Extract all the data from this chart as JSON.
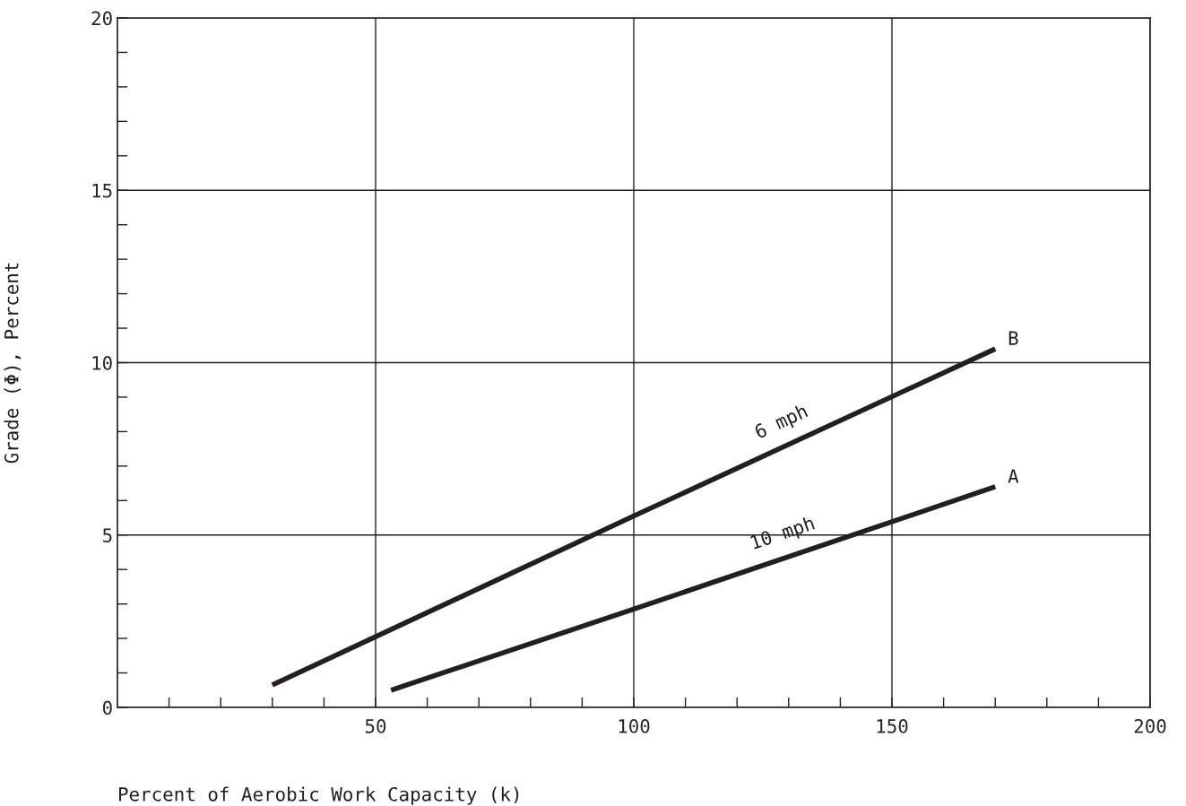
{
  "chart_data": {
    "type": "line",
    "xlabel": "Percent of Aerobic Work Capacity (k)",
    "ylabel": "Grade (Φ), Percent",
    "xlim": [
      0,
      200
    ],
    "ylim": [
      0,
      20
    ],
    "xticks": [
      {
        "value": 10,
        "label": null
      },
      {
        "value": 20,
        "label": null
      },
      {
        "value": 30,
        "label": null
      },
      {
        "value": 40,
        "label": null
      },
      50,
      {
        "value": 60,
        "label": null
      },
      {
        "value": 70,
        "label": null
      },
      {
        "value": 80,
        "label": null
      },
      {
        "value": 90,
        "label": null
      },
      100,
      {
        "value": 110,
        "label": null
      },
      {
        "value": 120,
        "label": null
      },
      {
        "value": 130,
        "label": null
      },
      {
        "value": 140,
        "label": null
      },
      150,
      {
        "value": 160,
        "label": null
      },
      {
        "value": 170,
        "label": null
      },
      {
        "value": 180,
        "label": null
      },
      {
        "value": 190,
        "label": null
      },
      200
    ],
    "yticks": [
      0,
      {
        "value": 1,
        "label": null
      },
      {
        "value": 2,
        "label": null
      },
      {
        "value": 3,
        "label": null
      },
      {
        "value": 4,
        "label": null
      },
      5,
      {
        "value": 6,
        "label": null
      },
      {
        "value": 7,
        "label": null
      },
      {
        "value": 8,
        "label": null
      },
      {
        "value": 9,
        "label": null
      },
      10,
      {
        "value": 11,
        "label": null
      },
      {
        "value": 12,
        "label": null
      },
      {
        "value": 13,
        "label": null
      },
      {
        "value": 14,
        "label": null
      },
      15,
      {
        "value": 16,
        "label": null
      },
      {
        "value": 17,
        "label": null
      },
      {
        "value": 18,
        "label": null
      },
      {
        "value": 19,
        "label": null
      },
      20
    ],
    "grid": true,
    "legend": false,
    "marker": "none",
    "line_style": "solid",
    "series": [
      {
        "name": "6 mph",
        "color": "#231f20",
        "x": [
          30,
          100,
          170
        ],
        "values": [
          0.65,
          5.55,
          10.4
        ]
      },
      {
        "name": "10 mph",
        "color": "#231f20",
        "x": [
          53,
          100,
          170
        ],
        "values": [
          0.5,
          2.85,
          6.4
        ]
      }
    ],
    "annotations": [
      {
        "text": "B",
        "x": 170,
        "y": 10.4
      },
      {
        "text": "A",
        "x": 170,
        "y": 6.4
      }
    ]
  }
}
